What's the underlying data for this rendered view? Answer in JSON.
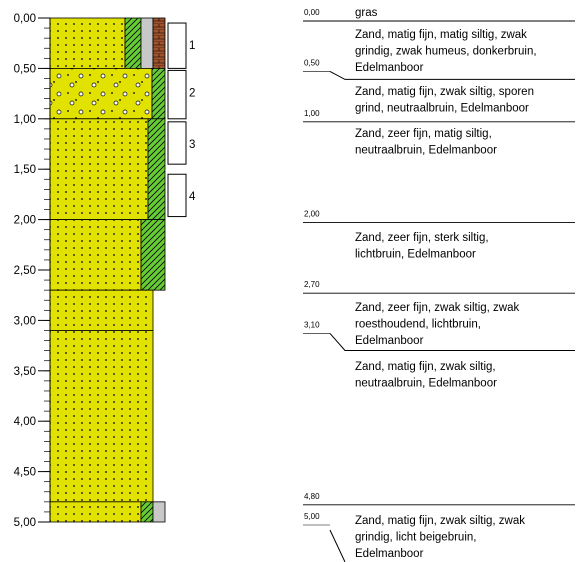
{
  "depth_axis": {
    "ylim": [
      0,
      5
    ],
    "ticks": [
      {
        "value": 0,
        "label": "0,00"
      },
      {
        "value": 0.5,
        "label": "0,50"
      },
      {
        "value": 1,
        "label": "1,00"
      },
      {
        "value": 1.5,
        "label": "1,50"
      },
      {
        "value": 2,
        "label": "2,00"
      },
      {
        "value": 2.5,
        "label": "2,50"
      },
      {
        "value": 3,
        "label": "3,00"
      },
      {
        "value": 3.5,
        "label": "3,50"
      },
      {
        "value": 4,
        "label": "4,00"
      },
      {
        "value": 4.5,
        "label": "4,50"
      },
      {
        "value": 5,
        "label": "5,00"
      }
    ]
  },
  "samples": [
    {
      "label": "1",
      "top": 0.05,
      "bottom": 0.5
    },
    {
      "label": "2",
      "top": 0.52,
      "bottom": 1.0
    },
    {
      "label": "3",
      "top": 1.03,
      "bottom": 1.45
    },
    {
      "label": "4",
      "top": 1.55,
      "bottom": 1.97
    }
  ],
  "depths": [
    {
      "value": 0,
      "label": "0,00"
    },
    {
      "value": 0.5,
      "label": "0,50"
    },
    {
      "value": 1,
      "label": "1,00"
    },
    {
      "value": 2,
      "label": "2,00"
    },
    {
      "value": 2.7,
      "label": "2,70"
    },
    {
      "value": 3.1,
      "label": "3,10"
    },
    {
      "value": 4.8,
      "label": "4,80"
    },
    {
      "value": 5,
      "label": "5,00"
    }
  ],
  "descriptions": [
    [
      "gras"
    ],
    [
      "Zand, matig fijn, matig siltig, zwak",
      "grindig, zwak humeus, donkerbruin,",
      "Edelmanboor"
    ],
    [
      "Zand, matig fijn, zwak siltig, sporen",
      "grind, neutraalbruin, Edelmanboor"
    ],
    [
      "Zand, zeer fijn, matig siltig,",
      "neutraalbruin, Edelmanboor"
    ],
    [
      "Zand, zeer fijn, sterk siltig,",
      "lichtbruin, Edelmanboor"
    ],
    [
      "Zand, zeer fijn, zwak siltig, zwak",
      "roesthoudend, lichtbruin,",
      "Edelmanboor"
    ],
    [
      "Zand, matig fijn, zwak siltig,",
      "neutraalbruin, Edelmanboor"
    ],
    [
      "Zand, matig fijn, zwak siltig, zwak",
      "grindig, licht beigebruin,",
      "Edelmanboor"
    ]
  ]
}
